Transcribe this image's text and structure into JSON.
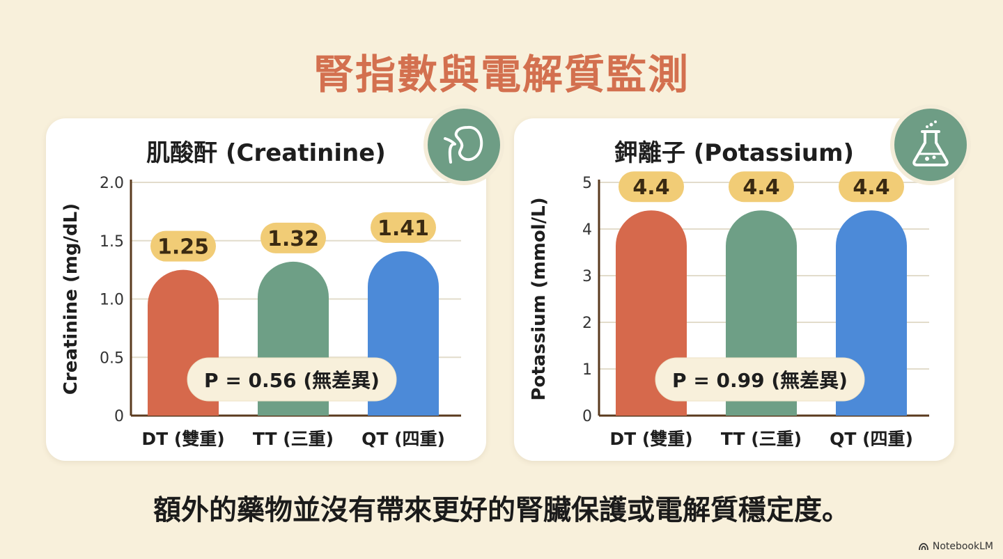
{
  "title": "腎指數與電解質監測",
  "conclusion": "額外的藥物並沒有帶來更好的腎臟保護或電解質穩定度。",
  "brand": "NotebookLM",
  "colors": {
    "dt": "#d6694c",
    "tt": "#6e9f86",
    "qt": "#4c8ad8",
    "label_bg": "#f1cc76",
    "title": "#d3704f"
  },
  "chart_data": [
    {
      "type": "bar",
      "title": "肌酸酐 (Creatinine)",
      "ylabel": "Creatinine (mg/dL)",
      "categories": [
        "DT (雙重)",
        "TT (三重)",
        "QT (四重)"
      ],
      "values": [
        1.25,
        1.32,
        1.41
      ],
      "value_labels": [
        "1.25",
        "1.32",
        "1.41"
      ],
      "ylim": [
        0,
        2.0
      ],
      "yticks": [
        "0",
        "0.5",
        "1.0",
        "1.5",
        "2.0"
      ],
      "annotation": "P = 0.56 (無差異)",
      "grid": true,
      "icon": "kidney-icon"
    },
    {
      "type": "bar",
      "title": "鉀離子 (Potassium)",
      "ylabel": "Potassium (mmol/L)",
      "categories": [
        "DT (雙重)",
        "TT (三重)",
        "QT (四重)"
      ],
      "values": [
        4.4,
        4.4,
        4.4
      ],
      "value_labels": [
        "4.4",
        "4.4",
        "4.4"
      ],
      "ylim": [
        0,
        5
      ],
      "yticks": [
        "0",
        "1",
        "2",
        "3",
        "4",
        "5"
      ],
      "annotation": "P = 0.99 (無差異)",
      "grid": true,
      "icon": "flask-icon"
    }
  ]
}
